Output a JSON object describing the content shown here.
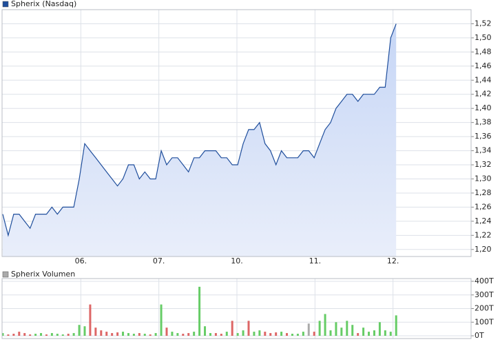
{
  "chart_data": [
    {
      "type": "area",
      "x": [
        0,
        0.07,
        0.14,
        0.21,
        0.28,
        0.35,
        0.42,
        0.49,
        0.56,
        0.63,
        0.7,
        0.77,
        0.84,
        0.91,
        0.98,
        1.05,
        1.12,
        1.19,
        1.26,
        1.33,
        1.4,
        1.47,
        1.54,
        1.61,
        1.68,
        1.75,
        1.82,
        1.89,
        1.96,
        2.03,
        2.1,
        2.17,
        2.24,
        2.31,
        2.38,
        2.45,
        2.52,
        2.59,
        2.66,
        2.73,
        2.8,
        2.87,
        2.94,
        3.01,
        3.08,
        3.15,
        3.22,
        3.29,
        3.36,
        3.43,
        3.5,
        3.57,
        3.64,
        3.71,
        3.78,
        3.85,
        3.92,
        3.99,
        4.06,
        4.13,
        4.2,
        4.27,
        4.34,
        4.41,
        4.48,
        4.55,
        4.62,
        4.69,
        4.76,
        4.83,
        4.9,
        4.97,
        5.04
      ],
      "series": [
        {
          "name": "Spherix (Nasdaq)",
          "color": "#1f4e9c",
          "fill": "#d3e0f8",
          "values": [
            1.25,
            1.22,
            1.25,
            1.25,
            1.24,
            1.23,
            1.25,
            1.25,
            1.25,
            1.26,
            1.25,
            1.26,
            1.26,
            1.26,
            1.3,
            1.35,
            1.34,
            1.33,
            1.32,
            1.31,
            1.3,
            1.29,
            1.3,
            1.32,
            1.32,
            1.3,
            1.31,
            1.3,
            1.3,
            1.34,
            1.32,
            1.33,
            1.33,
            1.32,
            1.31,
            1.33,
            1.33,
            1.34,
            1.34,
            1.34,
            1.33,
            1.33,
            1.32,
            1.32,
            1.35,
            1.37,
            1.37,
            1.38,
            1.35,
            1.34,
            1.32,
            1.34,
            1.33,
            1.33,
            1.33,
            1.34,
            1.34,
            1.33,
            1.35,
            1.37,
            1.38,
            1.4,
            1.41,
            1.42,
            1.42,
            1.41,
            1.42,
            1.42,
            1.42,
            1.43,
            1.43,
            1.5,
            1.52
          ]
        }
      ],
      "xlim": [
        0,
        6
      ],
      "xticks": [
        {
          "value": 1,
          "label": "06."
        },
        {
          "value": 2,
          "label": "07."
        },
        {
          "value": 3,
          "label": "10."
        },
        {
          "value": 4,
          "label": "11."
        },
        {
          "value": 5,
          "label": "12."
        }
      ],
      "ylim": [
        1.19,
        1.54
      ],
      "yticks": [
        {
          "value": 1.2,
          "label": "1,20"
        },
        {
          "value": 1.22,
          "label": "1,22"
        },
        {
          "value": 1.24,
          "label": "1,24"
        },
        {
          "value": 1.26,
          "label": "1,26"
        },
        {
          "value": 1.28,
          "label": "1,28"
        },
        {
          "value": 1.3,
          "label": "1,30"
        },
        {
          "value": 1.32,
          "label": "1,32"
        },
        {
          "value": 1.34,
          "label": "1,34"
        },
        {
          "value": 1.36,
          "label": "1,36"
        },
        {
          "value": 1.38,
          "label": "1,38"
        },
        {
          "value": 1.4,
          "label": "1,40"
        },
        {
          "value": 1.42,
          "label": "1,42"
        },
        {
          "value": 1.44,
          "label": "1,44"
        },
        {
          "value": 1.46,
          "label": "1,46"
        },
        {
          "value": 1.48,
          "label": "1,48"
        },
        {
          "value": 1.5,
          "label": "1,50"
        },
        {
          "value": 1.52,
          "label": "1,52"
        }
      ],
      "grid": true
    },
    {
      "type": "bar",
      "x": [
        0,
        0.07,
        0.14,
        0.21,
        0.28,
        0.35,
        0.42,
        0.49,
        0.56,
        0.63,
        0.7,
        0.77,
        0.84,
        0.91,
        0.98,
        1.05,
        1.12,
        1.19,
        1.26,
        1.33,
        1.4,
        1.47,
        1.54,
        1.61,
        1.68,
        1.75,
        1.82,
        1.89,
        1.96,
        2.03,
        2.1,
        2.17,
        2.24,
        2.31,
        2.38,
        2.45,
        2.52,
        2.59,
        2.66,
        2.73,
        2.8,
        2.87,
        2.94,
        3.01,
        3.08,
        3.15,
        3.22,
        3.29,
        3.36,
        3.43,
        3.5,
        3.57,
        3.64,
        3.71,
        3.78,
        3.85,
        3.92,
        3.99,
        4.06,
        4.13,
        4.2,
        4.27,
        4.34,
        4.41,
        4.48,
        4.55,
        4.62,
        4.69,
        4.76,
        4.83,
        4.9,
        4.97,
        5.04
      ],
      "series": [
        {
          "name": "Spherix Volumen",
          "color": "#aaaaaa",
          "values": [
            20,
            10,
            15,
            30,
            20,
            10,
            15,
            20,
            10,
            20,
            15,
            10,
            15,
            20,
            80,
            70,
            230,
            60,
            40,
            30,
            20,
            25,
            30,
            20,
            15,
            20,
            15,
            10,
            20,
            230,
            60,
            30,
            20,
            15,
            20,
            30,
            360,
            70,
            20,
            20,
            15,
            30,
            110,
            20,
            40,
            110,
            30,
            40,
            30,
            20,
            25,
            30,
            20,
            15,
            15,
            30,
            90,
            30,
            110,
            160,
            40,
            100,
            60,
            110,
            80,
            20,
            60,
            30,
            40,
            100,
            40,
            30,
            150
          ],
          "colors": [
            "#6c6",
            "#d66",
            "#d66",
            "#d66",
            "#d66",
            "#d66",
            "#6c6",
            "#6c6",
            "#d66",
            "#6c6",
            "#6c6",
            "#6c6",
            "#d66",
            "#6c6",
            "#6c6",
            "#6c6",
            "#d66",
            "#d66",
            "#d66",
            "#d66",
            "#d66",
            "#d66",
            "#6c6",
            "#6c6",
            "#6c6",
            "#d66",
            "#6c6",
            "#d66",
            "#6c6",
            "#6c6",
            "#d66",
            "#6c6",
            "#6c6",
            "#d66",
            "#d66",
            "#6c6",
            "#6c6",
            "#6c6",
            "#6c6",
            "#d66",
            "#d66",
            "#6c6",
            "#d66",
            "#6c6",
            "#6c6",
            "#d66",
            "#6c6",
            "#6c6",
            "#d66",
            "#d66",
            "#d66",
            "#6c6",
            "#d66",
            "#6c6",
            "#6c6",
            "#6c6",
            "#aaa",
            "#d66",
            "#6c6",
            "#6c6",
            "#6c6",
            "#6c6",
            "#6c6",
            "#6c6",
            "#6c6",
            "#d66",
            "#6c6",
            "#6c6",
            "#6c6",
            "#6c6",
            "#6c6",
            "#6c6",
            "#6c6"
          ]
        }
      ],
      "xlim": [
        0,
        6
      ],
      "ylim": [
        0,
        400
      ],
      "yticks": [
        {
          "value": 0,
          "label": "0T"
        },
        {
          "value": 100,
          "label": "100T"
        },
        {
          "value": 200,
          "label": "200T"
        },
        {
          "value": 300,
          "label": "300T"
        },
        {
          "value": 400,
          "label": "400T"
        }
      ],
      "grid": true
    }
  ]
}
